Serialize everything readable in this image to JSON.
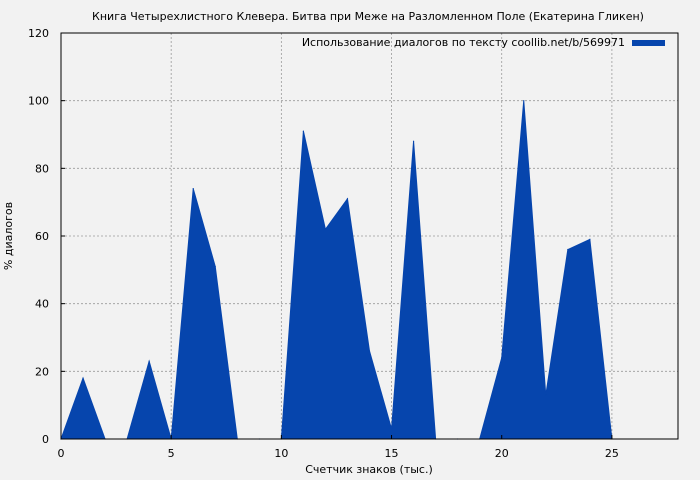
{
  "chart_data": {
    "type": "area",
    "title": "Книга Четырехлистного Клевера. Битва при Меже на Разломленном Поле (Екатерина Гликен)",
    "xlabel": "Счетчик знаков (тыс.)",
    "ylabel": "% диалогов",
    "xlim": [
      0,
      28
    ],
    "ylim": [
      0,
      120
    ],
    "xticks": [
      0,
      5,
      10,
      15,
      20,
      25
    ],
    "yticks": [
      0,
      20,
      40,
      60,
      80,
      100,
      120
    ],
    "grid": true,
    "legend_position": "top-right",
    "series": [
      {
        "name": "Использование диалогов по тексту coollib.net/b/569971",
        "color": "#0645ad",
        "x": [
          0,
          1,
          2,
          3,
          4,
          5,
          6,
          7,
          8,
          9,
          10,
          11,
          12,
          13,
          14,
          15,
          16,
          17,
          18,
          19,
          20,
          21,
          22,
          23,
          24,
          25
        ],
        "y": [
          0,
          18,
          0,
          0,
          23,
          0,
          74,
          51,
          0,
          0,
          0,
          91,
          62,
          71,
          26,
          3,
          88,
          0,
          0,
          0,
          24,
          100,
          13,
          56,
          59,
          0
        ]
      }
    ]
  }
}
